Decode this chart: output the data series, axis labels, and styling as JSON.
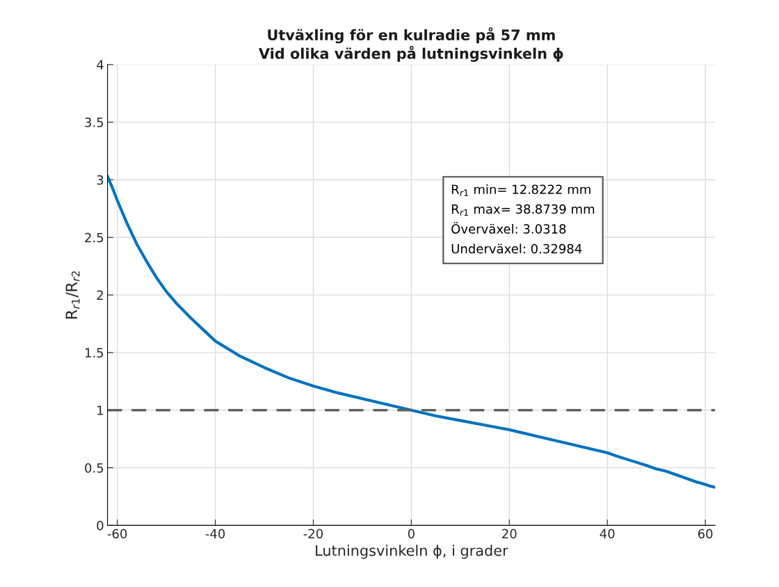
{
  "chart_data": {
    "type": "line",
    "title": "Utväxling för en kulradie på 57 mm\nVid olika värden på lutningsvinkeln ϕ",
    "xlabel": "Lutningsvinkeln ϕ, i grader",
    "ylabel": "R$_{r1}$/R$_{r2}$",
    "x": [
      -62,
      -61,
      -60,
      -58,
      -56,
      -54,
      -52,
      -50,
      -48,
      -45,
      -42,
      -40,
      -35,
      -30,
      -25,
      -20,
      -15,
      -10,
      -5,
      0,
      5,
      10,
      15,
      20,
      25,
      30,
      35,
      40,
      42,
      45,
      48,
      50,
      52,
      54,
      56,
      58,
      60,
      61,
      62
    ],
    "series": [
      {
        "color": "#0072bd",
        "values": [
          3.03,
          2.93,
          2.82,
          2.62,
          2.44,
          2.29,
          2.15,
          2.03,
          1.93,
          1.8,
          1.68,
          1.6,
          1.47,
          1.37,
          1.28,
          1.21,
          1.15,
          1.1,
          1.05,
          1.0,
          0.95,
          0.91,
          0.87,
          0.83,
          0.78,
          0.73,
          0.68,
          0.63,
          0.6,
          0.56,
          0.52,
          0.49,
          0.47,
          0.44,
          0.41,
          0.38,
          0.355,
          0.34,
          0.33
        ]
      }
    ],
    "xlim": [
      -62,
      62
    ],
    "xticks": [
      -60,
      -40,
      -20,
      0,
      20,
      40,
      60
    ],
    "ylim": [
      0,
      4
    ],
    "yticks": [
      0,
      0.5,
      1,
      1.5,
      2,
      2.5,
      3,
      3.5,
      4
    ],
    "ref_lines": [
      {
        "axis": "y",
        "value": 1,
        "color": "#606060",
        "line_style": "dashed"
      }
    ],
    "annotations": [
      "R$_{r1}$ min= 12.8222 mm",
      "R$_{r1}$ max= 38.8739 mm",
      "Överväxel: 3.0318",
      "Underväxel: 0.32984"
    ],
    "grid": true,
    "legend": false
  }
}
